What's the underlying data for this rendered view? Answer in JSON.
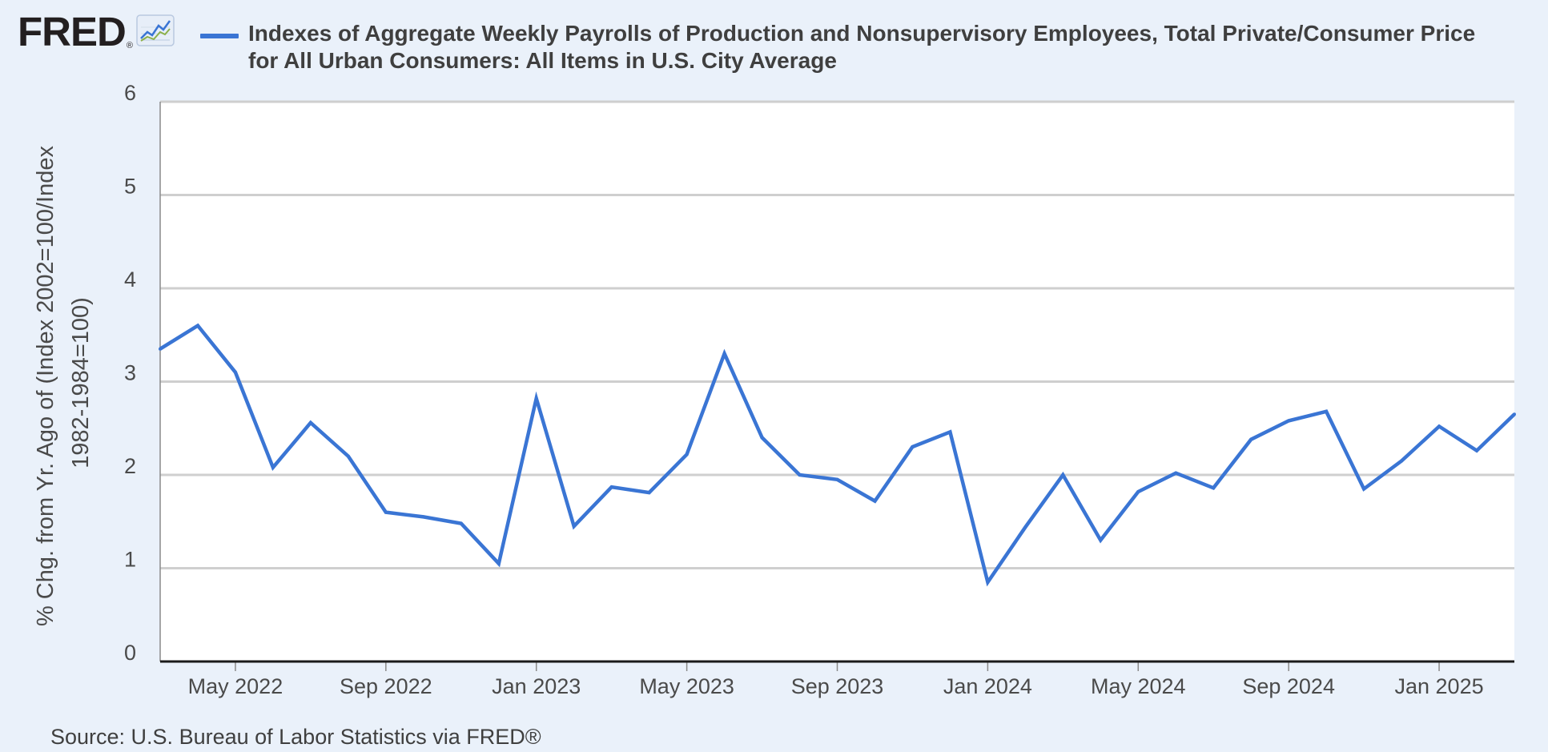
{
  "brand": {
    "logo_text": "FRED",
    "logo_mark": "®",
    "logo_icon": "line-chart-icon"
  },
  "header": {
    "title_line1": "Indexes of Aggregate Weekly Payrolls of Production and Nonsupervisory Employees, Total Private/Consumer Price",
    "title_line2": "for All Urban Consumers: All Items in U.S. City Average"
  },
  "source": "Source: U.S. Bureau of Labor Statistics via FRED®",
  "colors": {
    "series": "#3a75d4",
    "grid": "#cfcfcf",
    "plot_bg": "#ffffff",
    "page_bg": "#eaf1fa"
  },
  "chart_data": {
    "type": "line",
    "ylabel": "% Chg. from Yr. Ago of (Index 2002=100/Index 1982-1984=100)",
    "ylabel_lines": [
      "% Chg. from Yr. Ago of (Index 2002=100/Index",
      "1982-1984=100)"
    ],
    "ylim": [
      0,
      6
    ],
    "yticks": [
      0,
      1,
      2,
      3,
      4,
      5,
      6
    ],
    "xlim": [
      "2022-03",
      "2025-03"
    ],
    "xticks": [
      {
        "date": "2022-05",
        "label": "May 2022"
      },
      {
        "date": "2022-09",
        "label": "Sep 2022"
      },
      {
        "date": "2023-01",
        "label": "Jan 2023"
      },
      {
        "date": "2023-05",
        "label": "May 2023"
      },
      {
        "date": "2023-09",
        "label": "Sep 2023"
      },
      {
        "date": "2024-01",
        "label": "Jan 2024"
      },
      {
        "date": "2024-05",
        "label": "May 2024"
      },
      {
        "date": "2024-09",
        "label": "Sep 2024"
      },
      {
        "date": "2025-01",
        "label": "Jan 2025"
      }
    ],
    "grid": true,
    "legend": "top-left",
    "series": [
      {
        "color": "#3a75d4",
        "x": [
          "2022-03",
          "2022-04",
          "2022-05",
          "2022-06",
          "2022-07",
          "2022-08",
          "2022-09",
          "2022-10",
          "2022-11",
          "2022-12",
          "2023-01",
          "2023-02",
          "2023-03",
          "2023-04",
          "2023-05",
          "2023-06",
          "2023-07",
          "2023-08",
          "2023-09",
          "2023-10",
          "2023-11",
          "2023-12",
          "2024-01",
          "2024-02",
          "2024-03",
          "2024-04",
          "2024-05",
          "2024-06",
          "2024-07",
          "2024-08",
          "2024-09",
          "2024-10",
          "2024-11",
          "2024-12",
          "2025-01",
          "2025-02",
          "2025-03"
        ],
        "values": [
          3.35,
          3.6,
          3.1,
          2.08,
          2.56,
          2.2,
          1.6,
          1.55,
          1.48,
          1.05,
          2.82,
          1.45,
          1.87,
          1.81,
          2.22,
          3.3,
          2.4,
          2.0,
          1.95,
          1.72,
          2.3,
          2.46,
          0.85,
          1.44,
          2.0,
          1.3,
          1.82,
          2.02,
          1.86,
          2.38,
          2.58,
          2.68,
          1.85,
          2.15,
          2.52,
          2.26,
          2.65
        ]
      }
    ]
  }
}
